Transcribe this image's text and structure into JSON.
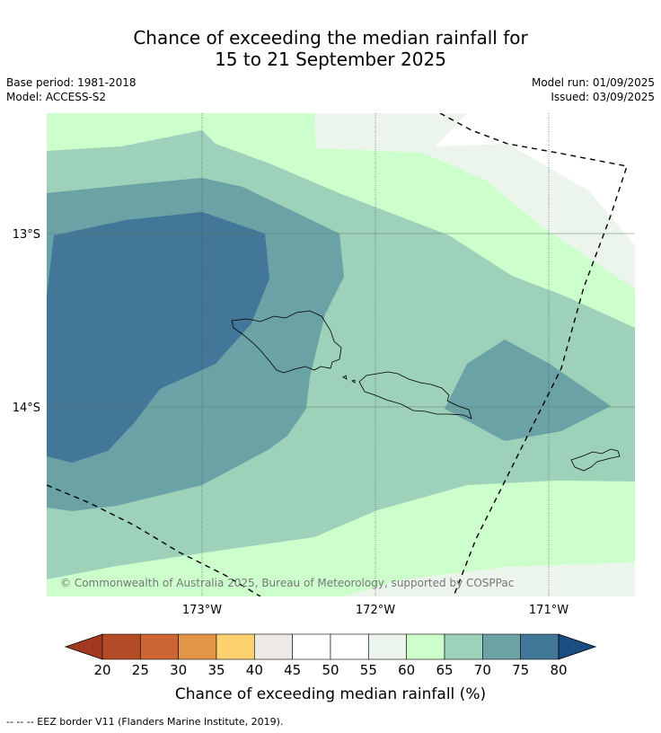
{
  "title_line1": "Chance of exceeding the median rainfall for",
  "title_line2": "15 to 21 September 2025",
  "base_period": "Base period: 1981-2018",
  "model": "Model: ACCESS-S2",
  "model_run": "Model run: 01/09/2025",
  "issued": "Issued: 03/09/2025",
  "lat_labels": [
    "13°S",
    "14°S"
  ],
  "lon_labels": [
    "173°W",
    "172°W",
    "171°W"
  ],
  "copyright": "© Commonwealth of Australia 2025, Bureau of Meteorology, supported by COSPPac",
  "colorbar": {
    "tick_labels": [
      "20",
      "25",
      "30",
      "35",
      "40",
      "45",
      "50",
      "55",
      "60",
      "65",
      "70",
      "75",
      "80"
    ],
    "colors": [
      "#a33a20",
      "#b34c26",
      "#cd6532",
      "#e19647",
      "#fdd26e",
      "#edeae6",
      "#ffffff",
      "#ffffff",
      "#ebf5eb",
      "#ccffcc",
      "#9dd1b9",
      "#6ba2a6",
      "#427799",
      "#1b4d81"
    ],
    "label": "Chance of exceeding median rainfall (%)"
  },
  "eez_note": "--  --  -- EEZ border V11 (Flanders Marine Institute, 2019)."
}
